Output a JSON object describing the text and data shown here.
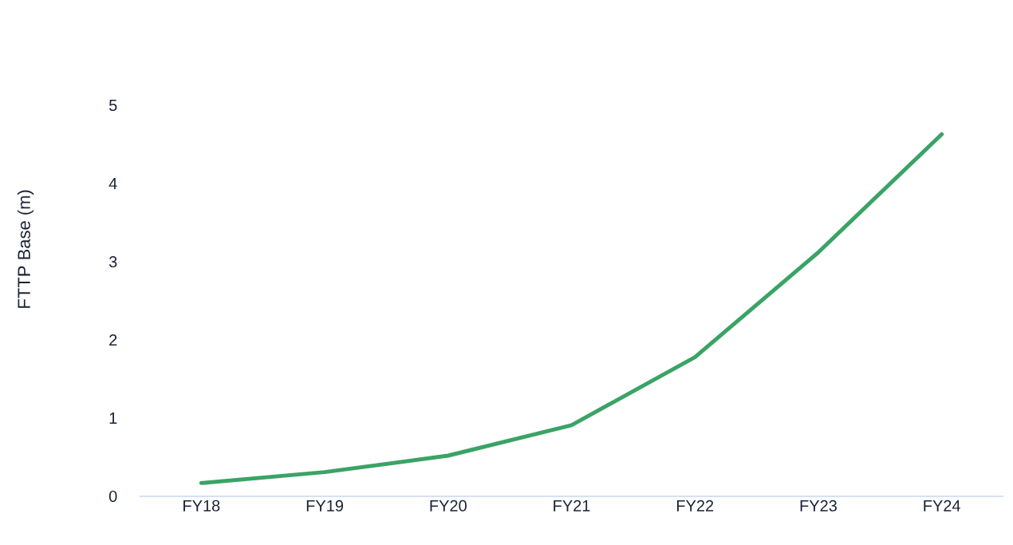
{
  "chart_data": {
    "type": "line",
    "ylabel": "FTTP Base (m)",
    "categories": [
      "FY18",
      "FY19",
      "FY20",
      "FY21",
      "FY22",
      "FY23",
      "FY24"
    ],
    "series": [
      {
        "color": "#3aa366",
        "values": [
          0.17,
          0.31,
          0.52,
          0.91,
          1.78,
          3.12,
          4.63
        ]
      }
    ],
    "ylim": [
      0,
      5
    ],
    "yticks": [
      0,
      1,
      2,
      3,
      4,
      5
    ],
    "grid": false
  }
}
